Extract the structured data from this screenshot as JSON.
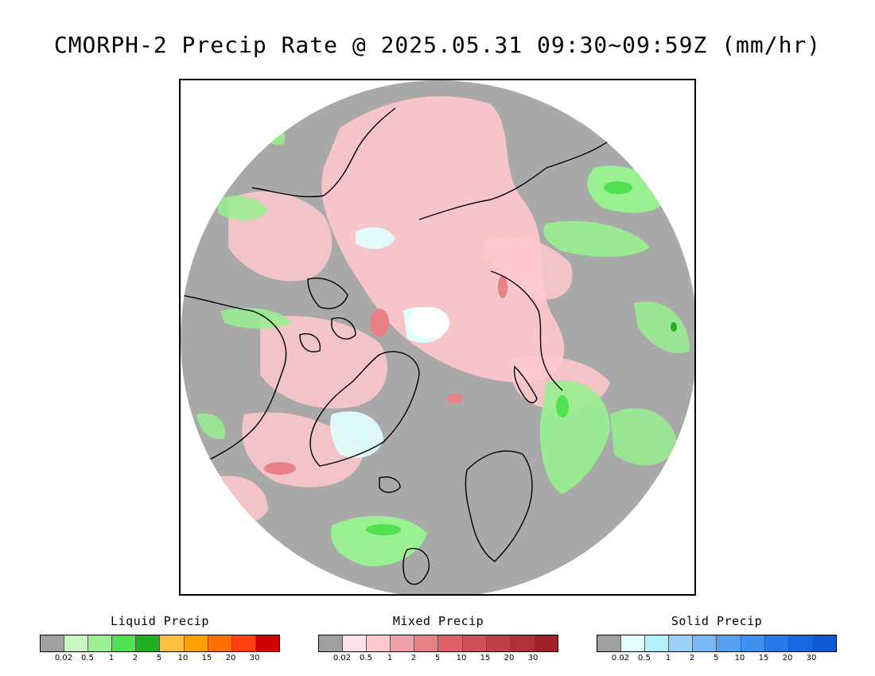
{
  "title": "CMORPH-2 Precip Rate @ 2025.05.31 09:30~09:59Z (mm/hr)",
  "map": {
    "projection": "north-polar-stereographic",
    "background_color": "#a9a9a9",
    "frame_color": "#000000"
  },
  "legends": [
    {
      "id": "liquid",
      "title": "Liquid Precip",
      "colors": [
        "#a0a0a0",
        "#c8f8c0",
        "#98f090",
        "#50e050",
        "#20b020",
        "#ffc040",
        "#ffa000",
        "#ff7000",
        "#ff4010",
        "#d00000"
      ],
      "ticks": [
        "0.02",
        "0.5",
        "1",
        "2",
        "5",
        "10",
        "15",
        "20",
        "30"
      ]
    },
    {
      "id": "mixed",
      "title": "Mixed Precip",
      "colors": [
        "#a0a0a0",
        "#ffe0e8",
        "#ffc8cc",
        "#f0a0a8",
        "#e88088",
        "#e06068",
        "#d05058",
        "#c04048",
        "#b03038",
        "#a02028"
      ],
      "ticks": [
        "0.02",
        "0.5",
        "1",
        "2",
        "5",
        "10",
        "15",
        "20",
        "30"
      ]
    },
    {
      "id": "solid",
      "title": "Solid Precip",
      "colors": [
        "#a0a0a0",
        "#e0ffff",
        "#b0f0f8",
        "#98d0f8",
        "#78b8f8",
        "#58a0f0",
        "#4090f0",
        "#2878e8",
        "#1868e0",
        "#1058d0"
      ],
      "ticks": [
        "0.02",
        "0.5",
        "1",
        "2",
        "5",
        "10",
        "15",
        "20",
        "30"
      ]
    }
  ]
}
